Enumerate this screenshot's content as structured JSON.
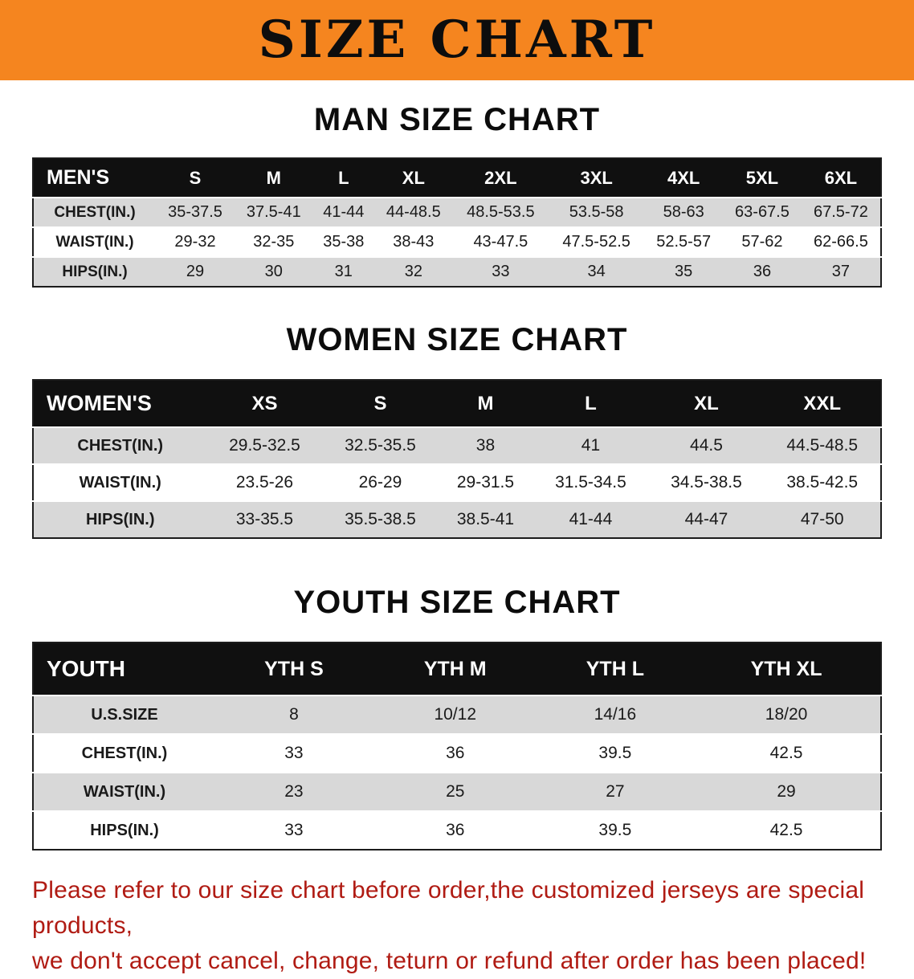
{
  "banner": {
    "title": "SIZE CHART",
    "bg_color": "#f5851f"
  },
  "colors": {
    "table_header_bg": "#101010",
    "row_alt_gray": "#d8d8d8",
    "disclaimer_red": "#b01b13"
  },
  "sections": [
    {
      "heading": "MAN SIZE CHART",
      "table": {
        "header": [
          "MEN'S",
          "S",
          "M",
          "L",
          "XL",
          "2XL",
          "3XL",
          "4XL",
          "5XL",
          "6XL"
        ],
        "rows": [
          {
            "label": "CHEST(IN.)",
            "values": [
              "35-37.5",
              "37.5-41",
              "41-44",
              "44-48.5",
              "48.5-53.5",
              "53.5-58",
              "58-63",
              "63-67.5",
              "67.5-72"
            ]
          },
          {
            "label": "WAIST(IN.)",
            "values": [
              "29-32",
              "32-35",
              "35-38",
              "38-43",
              "43-47.5",
              "47.5-52.5",
              "52.5-57",
              "57-62",
              "62-66.5"
            ]
          },
          {
            "label": "HIPS(IN.)",
            "values": [
              "29",
              "30",
              "31",
              "32",
              "33",
              "34",
              "35",
              "36",
              "37"
            ]
          }
        ]
      }
    },
    {
      "heading": "WOMEN SIZE CHART",
      "table": {
        "header": [
          "WOMEN'S",
          "XS",
          "S",
          "M",
          "L",
          "XL",
          "XXL"
        ],
        "rows": [
          {
            "label": "CHEST(IN.)",
            "values": [
              "29.5-32.5",
              "32.5-35.5",
              "38",
              "41",
              "44.5",
              "44.5-48.5"
            ]
          },
          {
            "label": "WAIST(IN.)",
            "values": [
              "23.5-26",
              "26-29",
              "29-31.5",
              "31.5-34.5",
              "34.5-38.5",
              "38.5-42.5"
            ]
          },
          {
            "label": "HIPS(IN.)",
            "values": [
              "33-35.5",
              "35.5-38.5",
              "38.5-41",
              "41-44",
              "44-47",
              "47-50"
            ]
          }
        ]
      }
    },
    {
      "heading": "YOUTH SIZE CHART",
      "table": {
        "header": [
          "YOUTH",
          "YTH S",
          "YTH M",
          "YTH L",
          "YTH XL"
        ],
        "rows": [
          {
            "label": "U.S.SIZE",
            "values": [
              "8",
              "10/12",
              "14/16",
              "18/20"
            ]
          },
          {
            "label": "CHEST(IN.)",
            "values": [
              "33",
              "36",
              "39.5",
              "42.5"
            ]
          },
          {
            "label": "WAIST(IN.)",
            "values": [
              "23",
              "25",
              "27",
              "29"
            ]
          },
          {
            "label": "HIPS(IN.)",
            "values": [
              "33",
              "36",
              "39.5",
              "42.5"
            ]
          }
        ]
      }
    }
  ],
  "disclaimer": {
    "line1": "Please refer to our size chart before order,the customized jerseys are special products,",
    "line2": "we don't accept cancel, change, teturn or refund after order has been placed!"
  }
}
